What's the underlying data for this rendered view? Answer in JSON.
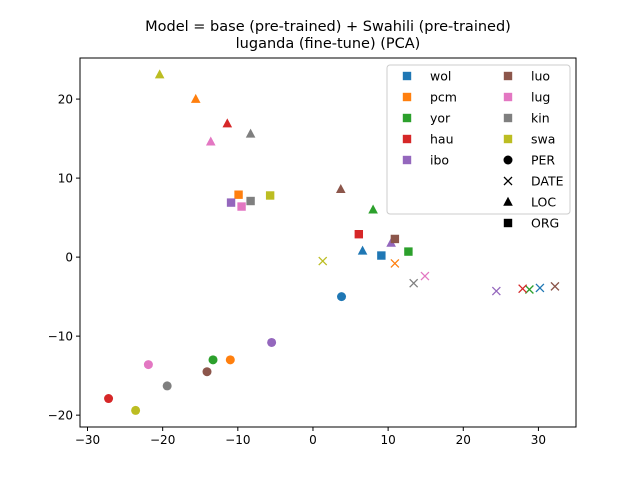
{
  "chart_data": {
    "type": "scatter",
    "title_lines": [
      "Model = base (pre-trained) + Swahili (pre-trained)",
      "luganda (fine-tune) (PCA)"
    ],
    "xlabel": "",
    "ylabel": "",
    "xlim": [
      -31,
      35
    ],
    "ylim": [
      -21.5,
      25.2
    ],
    "xticks": [
      -30,
      -20,
      -10,
      0,
      10,
      20,
      30
    ],
    "yticks": [
      -20,
      -10,
      0,
      10,
      20
    ],
    "grid": false,
    "legend_placement": "top-right",
    "language_colors": {
      "wol": "#1f77b4",
      "pcm": "#ff7f0e",
      "yor": "#2ca02c",
      "hau": "#d62728",
      "ibo": "#9467bd",
      "luo": "#8c564b",
      "lug": "#e377c2",
      "kin": "#7f7f7f",
      "swa": "#bcbd22"
    },
    "entity_markers": {
      "PER": "circle",
      "DATE": "x",
      "LOC": "triangle",
      "ORG": "square"
    },
    "legend_languages": [
      "wol",
      "pcm",
      "yor",
      "hau",
      "ibo",
      "luo",
      "lug",
      "kin",
      "swa"
    ],
    "legend_entities": [
      "PER",
      "DATE",
      "LOC",
      "ORG"
    ],
    "points": [
      {
        "lang": "wol",
        "entity": "PER",
        "x": 3.8,
        "y": -5.0
      },
      {
        "lang": "wol",
        "entity": "DATE",
        "x": 30.2,
        "y": -3.9
      },
      {
        "lang": "wol",
        "entity": "LOC",
        "x": 6.6,
        "y": 0.8
      },
      {
        "lang": "wol",
        "entity": "ORG",
        "x": 9.1,
        "y": 0.2
      },
      {
        "lang": "pcm",
        "entity": "PER",
        "x": -11.0,
        "y": -13.0
      },
      {
        "lang": "pcm",
        "entity": "DATE",
        "x": 10.9,
        "y": -0.8
      },
      {
        "lang": "pcm",
        "entity": "LOC",
        "x": -15.6,
        "y": 20.0
      },
      {
        "lang": "pcm",
        "entity": "ORG",
        "x": -9.9,
        "y": 7.9
      },
      {
        "lang": "yor",
        "entity": "PER",
        "x": -13.3,
        "y": -13.0
      },
      {
        "lang": "yor",
        "entity": "DATE",
        "x": 28.8,
        "y": -4.1
      },
      {
        "lang": "yor",
        "entity": "LOC",
        "x": 8.0,
        "y": 6.0
      },
      {
        "lang": "yor",
        "entity": "ORG",
        "x": 12.7,
        "y": 0.7
      },
      {
        "lang": "hau",
        "entity": "PER",
        "x": -27.2,
        "y": -17.9
      },
      {
        "lang": "hau",
        "entity": "DATE",
        "x": 27.9,
        "y": -4.0
      },
      {
        "lang": "hau",
        "entity": "LOC",
        "x": -11.4,
        "y": 16.9
      },
      {
        "lang": "hau",
        "entity": "ORG",
        "x": 6.1,
        "y": 2.9
      },
      {
        "lang": "ibo",
        "entity": "PER",
        "x": -5.5,
        "y": -10.8
      },
      {
        "lang": "ibo",
        "entity": "DATE",
        "x": 24.4,
        "y": -4.3
      },
      {
        "lang": "ibo",
        "entity": "LOC",
        "x": 10.4,
        "y": 1.8
      },
      {
        "lang": "ibo",
        "entity": "ORG",
        "x": -10.9,
        "y": 6.9
      },
      {
        "lang": "luo",
        "entity": "PER",
        "x": -14.1,
        "y": -14.5
      },
      {
        "lang": "luo",
        "entity": "DATE",
        "x": 32.2,
        "y": -3.7
      },
      {
        "lang": "luo",
        "entity": "LOC",
        "x": 3.7,
        "y": 8.6
      },
      {
        "lang": "luo",
        "entity": "ORG",
        "x": 10.9,
        "y": 2.3
      },
      {
        "lang": "lug",
        "entity": "PER",
        "x": -21.9,
        "y": -13.6
      },
      {
        "lang": "lug",
        "entity": "DATE",
        "x": 14.9,
        "y": -2.4
      },
      {
        "lang": "lug",
        "entity": "LOC",
        "x": -13.6,
        "y": 14.6
      },
      {
        "lang": "lug",
        "entity": "ORG",
        "x": -9.5,
        "y": 6.4
      },
      {
        "lang": "kin",
        "entity": "PER",
        "x": -19.4,
        "y": -16.3
      },
      {
        "lang": "kin",
        "entity": "DATE",
        "x": 13.4,
        "y": -3.3
      },
      {
        "lang": "kin",
        "entity": "LOC",
        "x": -8.3,
        "y": 15.6
      },
      {
        "lang": "kin",
        "entity": "ORG",
        "x": -8.3,
        "y": 7.1
      },
      {
        "lang": "swa",
        "entity": "PER",
        "x": -23.6,
        "y": -19.4
      },
      {
        "lang": "swa",
        "entity": "DATE",
        "x": 1.3,
        "y": -0.5
      },
      {
        "lang": "swa",
        "entity": "LOC",
        "x": -20.4,
        "y": 23.1
      },
      {
        "lang": "swa",
        "entity": "ORG",
        "x": -5.7,
        "y": 7.8
      }
    ]
  }
}
